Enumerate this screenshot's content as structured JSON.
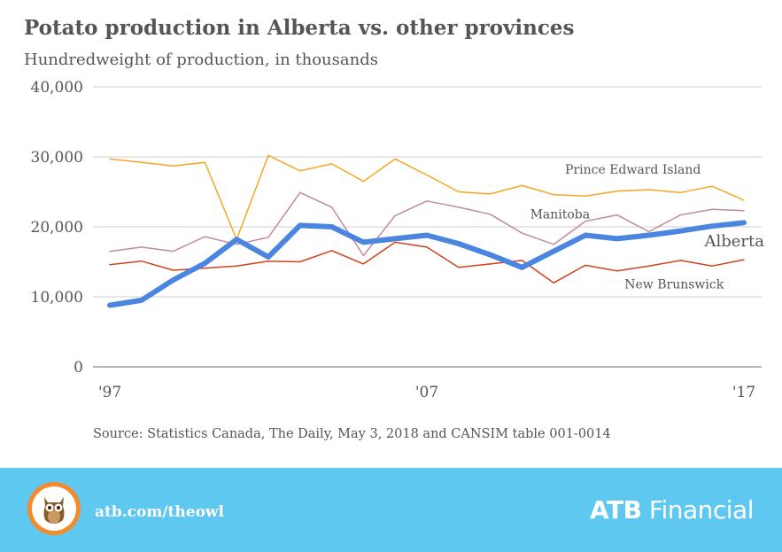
{
  "title": "Potato production in Alberta vs. other provinces",
  "subtitle": "Hundredweight of production, in thousands",
  "source": "Source: Statistics Canada, The Daily, May 3, 2018 and  CANSIM table 001-0014",
  "footer": {
    "link": "atb.com/theowl",
    "brand_bold": "ATB",
    "brand_rest": " Financial",
    "background": "#5ec8f0",
    "owl_ring": "#f48a2a"
  },
  "chart_data": {
    "type": "line",
    "x": [
      1997,
      1998,
      1999,
      2000,
      2001,
      2002,
      2003,
      2004,
      2005,
      2006,
      2007,
      2008,
      2009,
      2010,
      2011,
      2012,
      2013,
      2014,
      2015,
      2016,
      2017
    ],
    "x_tick_values": [
      1997,
      2007,
      2017
    ],
    "x_tick_labels": [
      "'97",
      "'07",
      "'17"
    ],
    "ylim": [
      0,
      40000
    ],
    "y_ticks": [
      0,
      10000,
      20000,
      30000,
      40000
    ],
    "y_tick_labels": [
      "0",
      "10,000",
      "20,000",
      "30,000",
      "40,000"
    ],
    "grid": true,
    "legend": "inline labels near line ends",
    "series": [
      {
        "name": "Prince Edward Island",
        "color": "#f5a623",
        "width": 1.5,
        "values": [
          29700,
          29200,
          28700,
          29200,
          18200,
          30200,
          28000,
          29000,
          26500,
          29700,
          27400,
          25000,
          24700,
          25900,
          24600,
          24400,
          25100,
          25300,
          24900,
          25800,
          23800
        ]
      },
      {
        "name": "Manitoba",
        "color": "#c08aa2",
        "width": 1.5,
        "values": [
          16500,
          17100,
          16500,
          18600,
          17500,
          18500,
          24900,
          22800,
          15900,
          21600,
          23700,
          22800,
          21800,
          19100,
          17500,
          20800,
          21700,
          19300,
          21700,
          22500,
          22300
        ]
      },
      {
        "name": "New Brunswick",
        "color": "#d0411f",
        "width": 1.5,
        "values": [
          14600,
          15100,
          13800,
          14100,
          14400,
          15100,
          15000,
          16600,
          14700,
          17800,
          17100,
          14200,
          14700,
          15200,
          12000,
          14500,
          13700,
          14400,
          15200,
          14400,
          15300
        ]
      },
      {
        "name": "Alberta",
        "color": "#4a86e0",
        "width": 6,
        "values": [
          8800,
          9500,
          12400,
          14800,
          18200,
          15700,
          20200,
          20000,
          17800,
          18300,
          18800,
          17600,
          16000,
          14200,
          16500,
          18800,
          18300,
          18800,
          19400,
          20100,
          20600
        ]
      }
    ],
    "annotations": [
      {
        "text": "Prince Edward Island",
        "series": "Prince Edward Island",
        "x": 2013.5,
        "y": 27600
      },
      {
        "text": "Manitoba",
        "series": "Manitoba",
        "x": 2011.2,
        "y": 21200
      },
      {
        "text": "Alberta",
        "series": "Alberta",
        "x": 2016.7,
        "y": 17200
      },
      {
        "text": "New Brunswick",
        "series": "New Brunswick",
        "x": 2014.8,
        "y": 11200
      }
    ]
  }
}
